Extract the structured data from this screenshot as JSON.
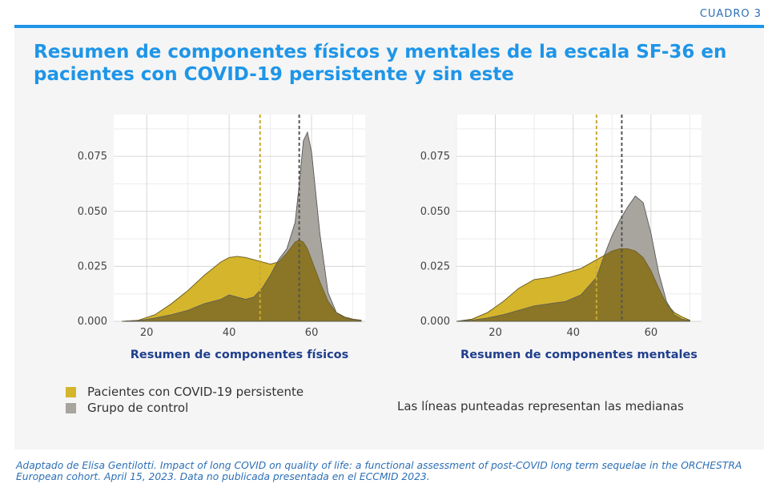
{
  "header": {
    "label": "CUADRO 3"
  },
  "title": "Resumen de componentes físicos y mentales de la escala SF-36 en pacientes con COVID-19 persistente y sin este",
  "legend": {
    "items": [
      {
        "label": "Pacientes con COVID-19 persistente",
        "color": "#d4b52c"
      },
      {
        "label": "Grupo de control",
        "color": "#a8a49e"
      }
    ],
    "note": "Las líneas punteadas representan las medianas"
  },
  "source": "Adaptado de Elisa Gentilotti. Impact of long COVID on quality of life: a functional assessment of post-COVID long term sequelae in the ORCHESTRA European cohort. April 15, 2023. Data no publicada presentada en el ECCMID 2023.",
  "colors": {
    "covid_fill": "#d4b52c",
    "control_fill": "#a8a49e",
    "overlap_fill": "#8a7626",
    "covid_median": "#c8a832",
    "control_median": "#555555",
    "title": "#1e95e8",
    "xlabel": "#1f3f8c"
  },
  "chart_data": [
    {
      "type": "area",
      "xlabel": "Resumen de componentes físicos",
      "ylabel": "",
      "xlim": [
        12,
        73
      ],
      "ylim": [
        0,
        0.094
      ],
      "xticks": [
        20,
        40,
        60
      ],
      "yticks": [
        0.0,
        0.025,
        0.05,
        0.075
      ],
      "ytick_labels": [
        "0.000",
        "0.025",
        "0.050",
        "0.075"
      ],
      "grid": true,
      "x": [
        14,
        18,
        22,
        26,
        30,
        34,
        38,
        40,
        42,
        44,
        46,
        48,
        50,
        52,
        54,
        56,
        57,
        58,
        59,
        60,
        62,
        64,
        66,
        68,
        70,
        72
      ],
      "series": [
        {
          "name": "Pacientes con COVID-19 persistente",
          "values": [
            0,
            0.0005,
            0.003,
            0.008,
            0.014,
            0.021,
            0.027,
            0.029,
            0.0295,
            0.029,
            0.028,
            0.027,
            0.026,
            0.027,
            0.031,
            0.036,
            0.037,
            0.036,
            0.033,
            0.028,
            0.018,
            0.009,
            0.004,
            0.002,
            0.001,
            0.0005
          ]
        },
        {
          "name": "Grupo de control",
          "values": [
            0,
            0.0003,
            0.0015,
            0.003,
            0.005,
            0.008,
            0.01,
            0.012,
            0.011,
            0.01,
            0.011,
            0.015,
            0.021,
            0.028,
            0.033,
            0.045,
            0.062,
            0.082,
            0.086,
            0.077,
            0.04,
            0.013,
            0.004,
            0.0015,
            0.0008,
            0.0003
          ]
        }
      ],
      "medians": [
        {
          "series": "Pacientes con COVID-19 persistente",
          "x": 47.5
        },
        {
          "series": "Grupo de control",
          "x": 57
        }
      ]
    },
    {
      "type": "area",
      "xlabel": "Resumen de componentes mentales",
      "ylabel": "",
      "xlim": [
        10,
        73
      ],
      "ylim": [
        0,
        0.094
      ],
      "xticks": [
        20,
        40,
        60
      ],
      "yticks": [
        0.0,
        0.025,
        0.05,
        0.075
      ],
      "ytick_labels": [
        "0.000",
        "0.025",
        "0.050",
        "0.075"
      ],
      "grid": true,
      "x": [
        10,
        14,
        18,
        22,
        26,
        30,
        34,
        38,
        42,
        46,
        48,
        50,
        52,
        54,
        56,
        58,
        60,
        62,
        64,
        66,
        68,
        70
      ],
      "series": [
        {
          "name": "Pacientes con COVID-19 persistente",
          "values": [
            0,
            0.001,
            0.004,
            0.009,
            0.015,
            0.019,
            0.02,
            0.022,
            0.024,
            0.028,
            0.03,
            0.032,
            0.033,
            0.033,
            0.032,
            0.029,
            0.023,
            0.015,
            0.008,
            0.004,
            0.002,
            0.0005
          ]
        },
        {
          "name": "Grupo de control",
          "values": [
            0,
            0.0005,
            0.0015,
            0.003,
            0.005,
            0.007,
            0.008,
            0.009,
            0.012,
            0.02,
            0.03,
            0.039,
            0.046,
            0.052,
            0.057,
            0.054,
            0.04,
            0.022,
            0.009,
            0.003,
            0.001,
            0.0003
          ]
        }
      ],
      "medians": [
        {
          "series": "Pacientes con COVID-19 persistente",
          "x": 46
        },
        {
          "series": "Grupo de control",
          "x": 52.5
        }
      ]
    }
  ]
}
